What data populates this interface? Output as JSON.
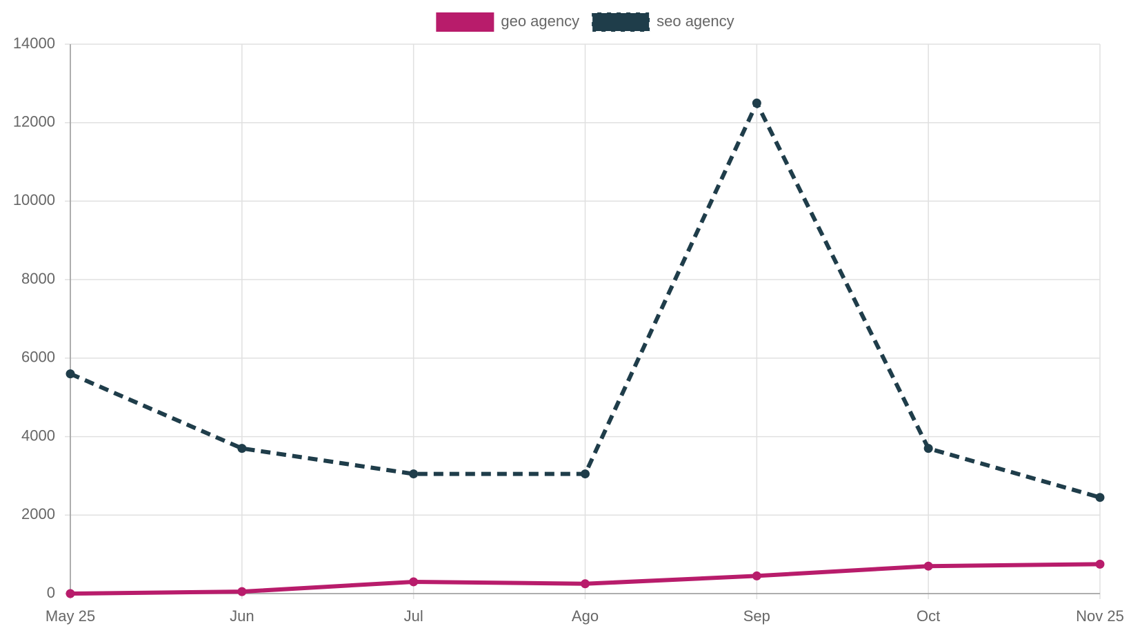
{
  "chart_data": {
    "type": "line",
    "x": [
      "May 25",
      "Jun",
      "Jul",
      "Ago",
      "Sep",
      "Oct",
      "Nov 25"
    ],
    "series": [
      {
        "name": "geo agency",
        "color": "#b81c6b",
        "line_style": "solid",
        "values": [
          0,
          50,
          300,
          250,
          450,
          700,
          750
        ]
      },
      {
        "name": "seo agency",
        "color": "#1f3d4a",
        "line_style": "dashed",
        "values": [
          5600,
          3700,
          3050,
          3050,
          12500,
          3700,
          2450
        ]
      }
    ],
    "ylim": [
      0,
      14000
    ],
    "yticks": [
      0,
      2000,
      4000,
      6000,
      8000,
      10000,
      12000,
      14000
    ],
    "grid": true,
    "legend": "top"
  }
}
